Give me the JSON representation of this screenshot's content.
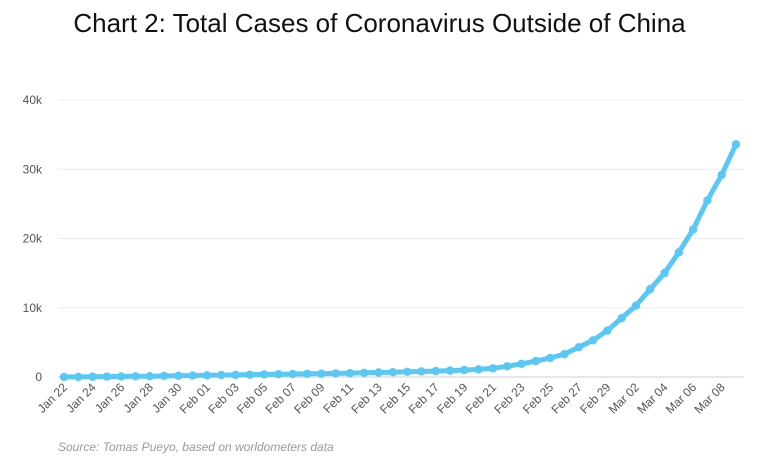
{
  "chart_data": {
    "type": "line",
    "title": "Chart 2: Total Cases of Coronavirus Outside of China",
    "source": "Source: Tomas Pueyo, based on worldometers data",
    "xlabel": "",
    "ylabel": "",
    "ylim": [
      0,
      40000
    ],
    "grid": true,
    "yticks": [
      {
        "value": 0,
        "label": "0"
      },
      {
        "value": 10000,
        "label": "10k"
      },
      {
        "value": 20000,
        "label": "20k"
      },
      {
        "value": 30000,
        "label": "30k"
      },
      {
        "value": 40000,
        "label": "40k"
      }
    ],
    "x": [
      "Jan 22",
      "Jan 23",
      "Jan 24",
      "Jan 25",
      "Jan 26",
      "Jan 27",
      "Jan 28",
      "Jan 29",
      "Jan 30",
      "Jan 31",
      "Feb 01",
      "Feb 02",
      "Feb 03",
      "Feb 04",
      "Feb 05",
      "Feb 06",
      "Feb 07",
      "Feb 08",
      "Feb 09",
      "Feb 10",
      "Feb 11",
      "Feb 12",
      "Feb 13",
      "Feb 14",
      "Feb 15",
      "Feb 16",
      "Feb 17",
      "Feb 18",
      "Feb 19",
      "Feb 20",
      "Feb 21",
      "Feb 22",
      "Feb 23",
      "Feb 24",
      "Feb 25",
      "Feb 26",
      "Feb 27",
      "Feb 28",
      "Feb 29",
      "Mar 01",
      "Mar 02",
      "Mar 03",
      "Mar 04",
      "Mar 05",
      "Mar 06",
      "Mar 07",
      "Mar 08",
      "Mar 09"
    ],
    "xtick_labels": [
      "Jan 22",
      "Jan 24",
      "Jan 26",
      "Jan 28",
      "Jan 30",
      "Feb 01",
      "Feb 03",
      "Feb 05",
      "Feb 07",
      "Feb 09",
      "Feb 11",
      "Feb 13",
      "Feb 15",
      "Feb 17",
      "Feb 19",
      "Feb 21",
      "Feb 23",
      "Feb 25",
      "Feb 27",
      "Feb 29",
      "Mar 02",
      "Mar 04",
      "Mar 06",
      "Mar 08"
    ],
    "series": [
      {
        "color": "#5ac8f5",
        "values": [
          10,
          20,
          40,
          60,
          80,
          100,
          120,
          150,
          180,
          220,
          250,
          280,
          310,
          340,
          370,
          400,
          430,
          460,
          490,
          520,
          560,
          600,
          650,
          700,
          750,
          800,
          850,
          920,
          1000,
          1100,
          1250,
          1550,
          1900,
          2300,
          2750,
          3300,
          4300,
          5300,
          6700,
          8500,
          10300,
          12700,
          15000,
          18000,
          21300,
          25500,
          29200,
          33600
        ]
      }
    ]
  }
}
